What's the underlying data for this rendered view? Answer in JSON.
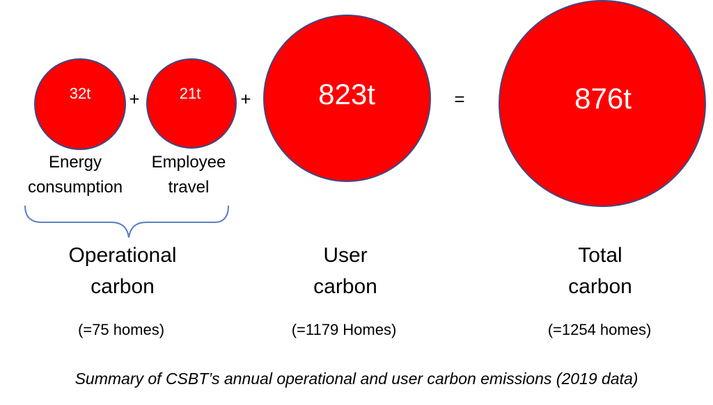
{
  "circles": {
    "energy": {
      "value": "32t",
      "label_line1": "Energy",
      "label_line2": "consumption"
    },
    "travel": {
      "value": "21t",
      "label_line1": "Employee",
      "label_line2": "travel"
    },
    "user": {
      "value": "823t"
    },
    "total": {
      "value": "876t"
    }
  },
  "operators": {
    "plus1": "+",
    "plus2": "+",
    "equals": "="
  },
  "groups": {
    "operational": {
      "line1": "Operational",
      "line2": "carbon",
      "homes": "(=75 homes)"
    },
    "user": {
      "line1": "User",
      "line2": "carbon",
      "homes": "(=1179 Homes)"
    },
    "total": {
      "line1": "Total",
      "line2": "carbon",
      "homes": "(=1254 homes)"
    }
  },
  "caption": "Summary of CSBT’s annual operational and user carbon emissions (2019 data)",
  "colors": {
    "circle_fill": "#ff0000",
    "circle_stroke": "#3b4a86",
    "brace": "#5b7fc7"
  }
}
